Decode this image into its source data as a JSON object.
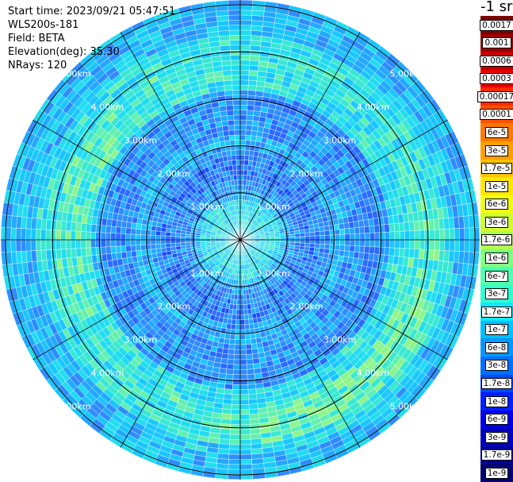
{
  "header": {
    "start_time": "Start time: 2023/09/21 05:47:51",
    "instrument": "WLS200s-181",
    "field": "Field: BETA",
    "elevation": "Elevation(deg): 35.30",
    "nrays": "NRays: 120"
  },
  "colorbar": {
    "unit_label": "-1 sr",
    "labels": [
      "0.0017",
      "0.001",
      "0.0006",
      "0.0003",
      "0.00017",
      "0.0001",
      "6e-5",
      "3e-5",
      "1.7e-5",
      "1e-5",
      "6e-6",
      "3e-6",
      "1.7e-6",
      "1e-6",
      "6e-7",
      "3e-7",
      "1.7e-7",
      "1e-7",
      "6e-8",
      "3e-8",
      "1.7e-8",
      "1e-8",
      "6e-9",
      "3e-9",
      "1.7e-9",
      "1e-9"
    ],
    "colors": [
      "#7a0000",
      "#9c0000",
      "#c40000",
      "#e80000",
      "#ff2a00",
      "#ff5200",
      "#ff7a00",
      "#ffa000",
      "#ffc400",
      "#ffe800",
      "#f0ff10",
      "#d0ff30",
      "#b0ff50",
      "#80ff80",
      "#50ffb0",
      "#30ffd0",
      "#10e8ff",
      "#00c0ff",
      "#0098ff",
      "#0070ff",
      "#0048ff",
      "#0020ff",
      "#0000e8",
      "#0000c0",
      "#000098",
      "#000070"
    ]
  },
  "ppi": {
    "range_rings_km": [
      1,
      2,
      3,
      4,
      5
    ],
    "ring_labels": [
      "1.00km",
      "2.00km",
      "3.00km",
      "4.00km",
      "5.00km"
    ],
    "max_range_km": 5.1,
    "nrays": 120,
    "range_gates": 48,
    "radial_spokes": 12
  }
}
